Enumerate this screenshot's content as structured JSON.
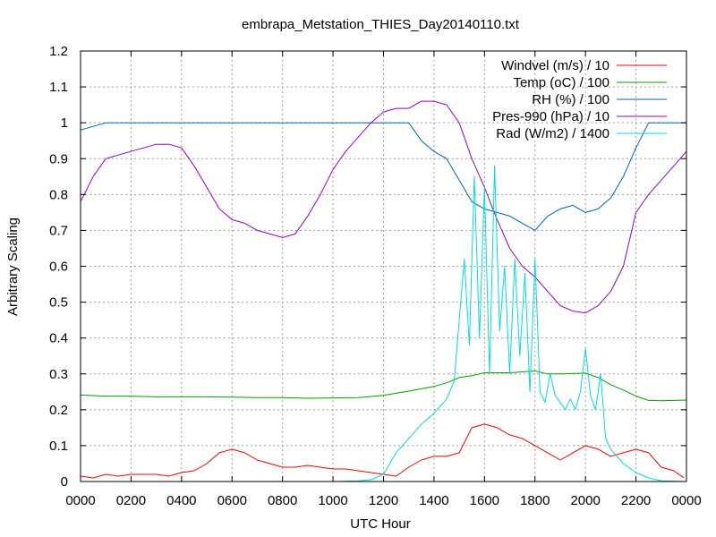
{
  "chart_data": {
    "type": "line",
    "title": "embrapa_Metstation_THIES_Day20140110.txt",
    "xlabel": "UTC Hour",
    "ylabel": "Arbitrary Scaling",
    "xlim": [
      0,
      2400
    ],
    "ylim": [
      0,
      1.2
    ],
    "x_ticks": [
      "0000",
      "0200",
      "0400",
      "0600",
      "0800",
      "1000",
      "1200",
      "1400",
      "1600",
      "1800",
      "2000",
      "2200",
      "0000"
    ],
    "y_ticks": [
      "0",
      "0.1",
      "0.2",
      "0.3",
      "0.4",
      "0.5",
      "0.6",
      "0.7",
      "0.8",
      "0.9",
      "1",
      "1.1",
      "1.2"
    ],
    "grid": true,
    "legend_position": "top-right",
    "series": [
      {
        "name": "Windvel (m/s) / 10",
        "color": "#ff0000",
        "x": [
          0,
          50,
          100,
          150,
          200,
          250,
          300,
          350,
          400,
          450,
          500,
          550,
          600,
          650,
          700,
          750,
          800,
          850,
          900,
          950,
          1000,
          1050,
          1100,
          1150,
          1200,
          1250,
          1300,
          1350,
          1400,
          1450,
          1500,
          1550,
          1600,
          1650,
          1700,
          1750,
          1800,
          1850,
          1900,
          1950,
          2000,
          2050,
          2100,
          2150,
          2200,
          2250,
          2300,
          2350,
          2390
        ],
        "y": [
          0.015,
          0.01,
          0.02,
          0.015,
          0.02,
          0.02,
          0.02,
          0.015,
          0.025,
          0.03,
          0.05,
          0.08,
          0.09,
          0.08,
          0.06,
          0.05,
          0.04,
          0.04,
          0.045,
          0.04,
          0.035,
          0.035,
          0.03,
          0.025,
          0.02,
          0.015,
          0.04,
          0.06,
          0.07,
          0.07,
          0.08,
          0.15,
          0.16,
          0.15,
          0.13,
          0.12,
          0.1,
          0.08,
          0.06,
          0.08,
          0.1,
          0.09,
          0.07,
          0.08,
          0.09,
          0.08,
          0.04,
          0.03,
          0.01
        ]
      },
      {
        "name": "Temp (oC) / 100",
        "color": "#00a000",
        "x": [
          0,
          100,
          200,
          300,
          400,
          500,
          600,
          700,
          800,
          900,
          1000,
          1100,
          1200,
          1300,
          1400,
          1450,
          1500,
          1550,
          1600,
          1700,
          1800,
          1850,
          1900,
          2000,
          2050,
          2100,
          2150,
          2200,
          2250,
          2300,
          2400
        ],
        "y": [
          0.241,
          0.238,
          0.238,
          0.236,
          0.236,
          0.236,
          0.235,
          0.234,
          0.234,
          0.232,
          0.233,
          0.234,
          0.24,
          0.252,
          0.265,
          0.275,
          0.29,
          0.295,
          0.303,
          0.303,
          0.308,
          0.3,
          0.3,
          0.302,
          0.29,
          0.27,
          0.255,
          0.238,
          0.226,
          0.225,
          0.227
        ]
      },
      {
        "name": "RH (%) / 100",
        "color": "#0060c0",
        "x": [
          0,
          50,
          100,
          200,
          400,
          600,
          800,
          1000,
          1200,
          1300,
          1320,
          1350,
          1400,
          1450,
          1500,
          1550,
          1600,
          1650,
          1700,
          1750,
          1800,
          1850,
          1900,
          1950,
          2000,
          2050,
          2100,
          2150,
          2200,
          2250,
          2400
        ],
        "y": [
          0.98,
          0.99,
          1.0,
          1.0,
          1.0,
          1.0,
          1.0,
          1.0,
          1.0,
          1.0,
          0.98,
          0.95,
          0.92,
          0.9,
          0.84,
          0.78,
          0.76,
          0.75,
          0.74,
          0.72,
          0.7,
          0.74,
          0.76,
          0.77,
          0.75,
          0.76,
          0.79,
          0.85,
          0.93,
          1.0,
          1.0
        ]
      },
      {
        "name": "Pres-990 (hPa) / 10",
        "color": "#9400d3",
        "x": [
          0,
          50,
          100,
          150,
          200,
          250,
          300,
          350,
          400,
          450,
          500,
          550,
          600,
          650,
          700,
          750,
          800,
          850,
          900,
          950,
          1000,
          1050,
          1100,
          1150,
          1200,
          1250,
          1300,
          1350,
          1400,
          1450,
          1500,
          1550,
          1600,
          1650,
          1700,
          1750,
          1800,
          1850,
          1900,
          1950,
          2000,
          2050,
          2100,
          2150,
          2200,
          2250,
          2300,
          2350,
          2400
        ],
        "y": [
          0.78,
          0.85,
          0.9,
          0.91,
          0.92,
          0.93,
          0.94,
          0.94,
          0.93,
          0.88,
          0.82,
          0.76,
          0.73,
          0.72,
          0.7,
          0.69,
          0.68,
          0.69,
          0.74,
          0.8,
          0.87,
          0.92,
          0.96,
          1.0,
          1.03,
          1.04,
          1.04,
          1.06,
          1.06,
          1.05,
          1.0,
          0.9,
          0.82,
          0.73,
          0.65,
          0.6,
          0.57,
          0.53,
          0.49,
          0.475,
          0.47,
          0.49,
          0.53,
          0.6,
          0.75,
          0.8,
          0.84,
          0.88,
          0.92
        ]
      },
      {
        "name": "Rad (W/m2) / 1400",
        "color": "#00dddd",
        "x": [
          0,
          1000,
          1100,
          1150,
          1200,
          1250,
          1300,
          1350,
          1400,
          1450,
          1480,
          1500,
          1520,
          1540,
          1560,
          1580,
          1600,
          1620,
          1640,
          1660,
          1680,
          1700,
          1720,
          1740,
          1760,
          1780,
          1800,
          1820,
          1840,
          1860,
          1880,
          1900,
          1920,
          1940,
          1960,
          1980,
          2000,
          2020,
          2040,
          2060,
          2080,
          2100,
          2150,
          2200,
          2250,
          2300,
          2400
        ],
        "y": [
          0,
          0,
          0.002,
          0.005,
          0.02,
          0.08,
          0.12,
          0.16,
          0.19,
          0.23,
          0.28,
          0.45,
          0.62,
          0.38,
          0.85,
          0.4,
          0.82,
          0.3,
          0.88,
          0.42,
          0.6,
          0.3,
          0.62,
          0.35,
          0.58,
          0.25,
          0.62,
          0.25,
          0.22,
          0.3,
          0.24,
          0.22,
          0.2,
          0.23,
          0.2,
          0.25,
          0.37,
          0.24,
          0.2,
          0.3,
          0.12,
          0.09,
          0.05,
          0.025,
          0.01,
          0.002,
          0
        ]
      }
    ]
  }
}
